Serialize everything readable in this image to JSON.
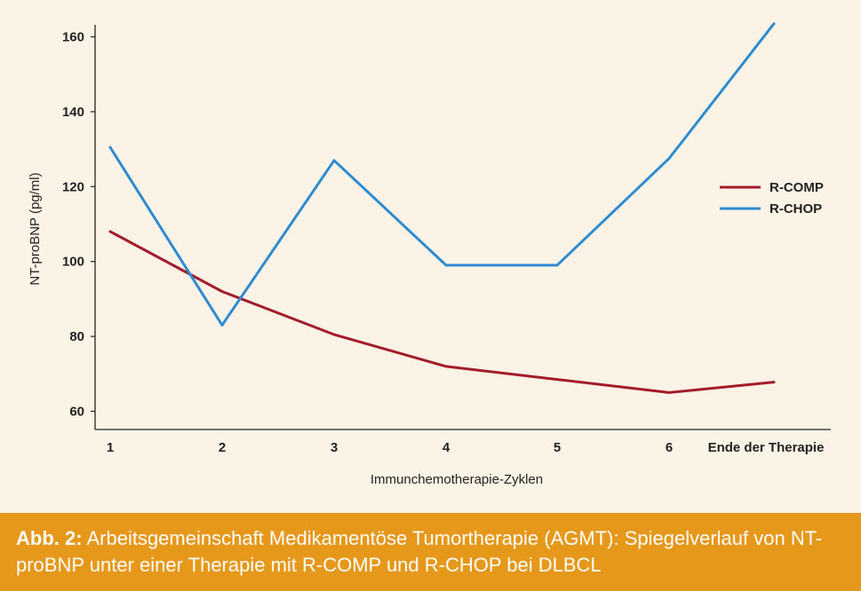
{
  "caption": {
    "label": "Abb. 2:",
    "text": "Arbeitsgemeinschaft Medikamentöse Tumortherapie (AGMT): Spiegelverlauf von NT-proBNP unter einer Therapie mit R-COMP und R-CHOP bei DLBCL"
  },
  "chart_data": {
    "type": "line",
    "categories": [
      "1",
      "2",
      "3",
      "4",
      "5",
      "6",
      "Ende der Therapie"
    ],
    "series": [
      {
        "name": "R-COMP",
        "color": "#a31c2c",
        "values": [
          108,
          92,
          80.5,
          72,
          68.5,
          65,
          67.8
        ]
      },
      {
        "name": "R-CHOP",
        "color": "#2e8bd0",
        "values": [
          130.5,
          83,
          127,
          99,
          99,
          127.5,
          163.5
        ]
      }
    ],
    "xlabel": "Immunchemotherapie-Zyklen",
    "ylabel": "NT-proBNP (pg/ml)",
    "ylim": [
      60,
      165
    ],
    "yticks": [
      60,
      80,
      100,
      120,
      140,
      160
    ],
    "grid": false,
    "legend_position": "right"
  }
}
